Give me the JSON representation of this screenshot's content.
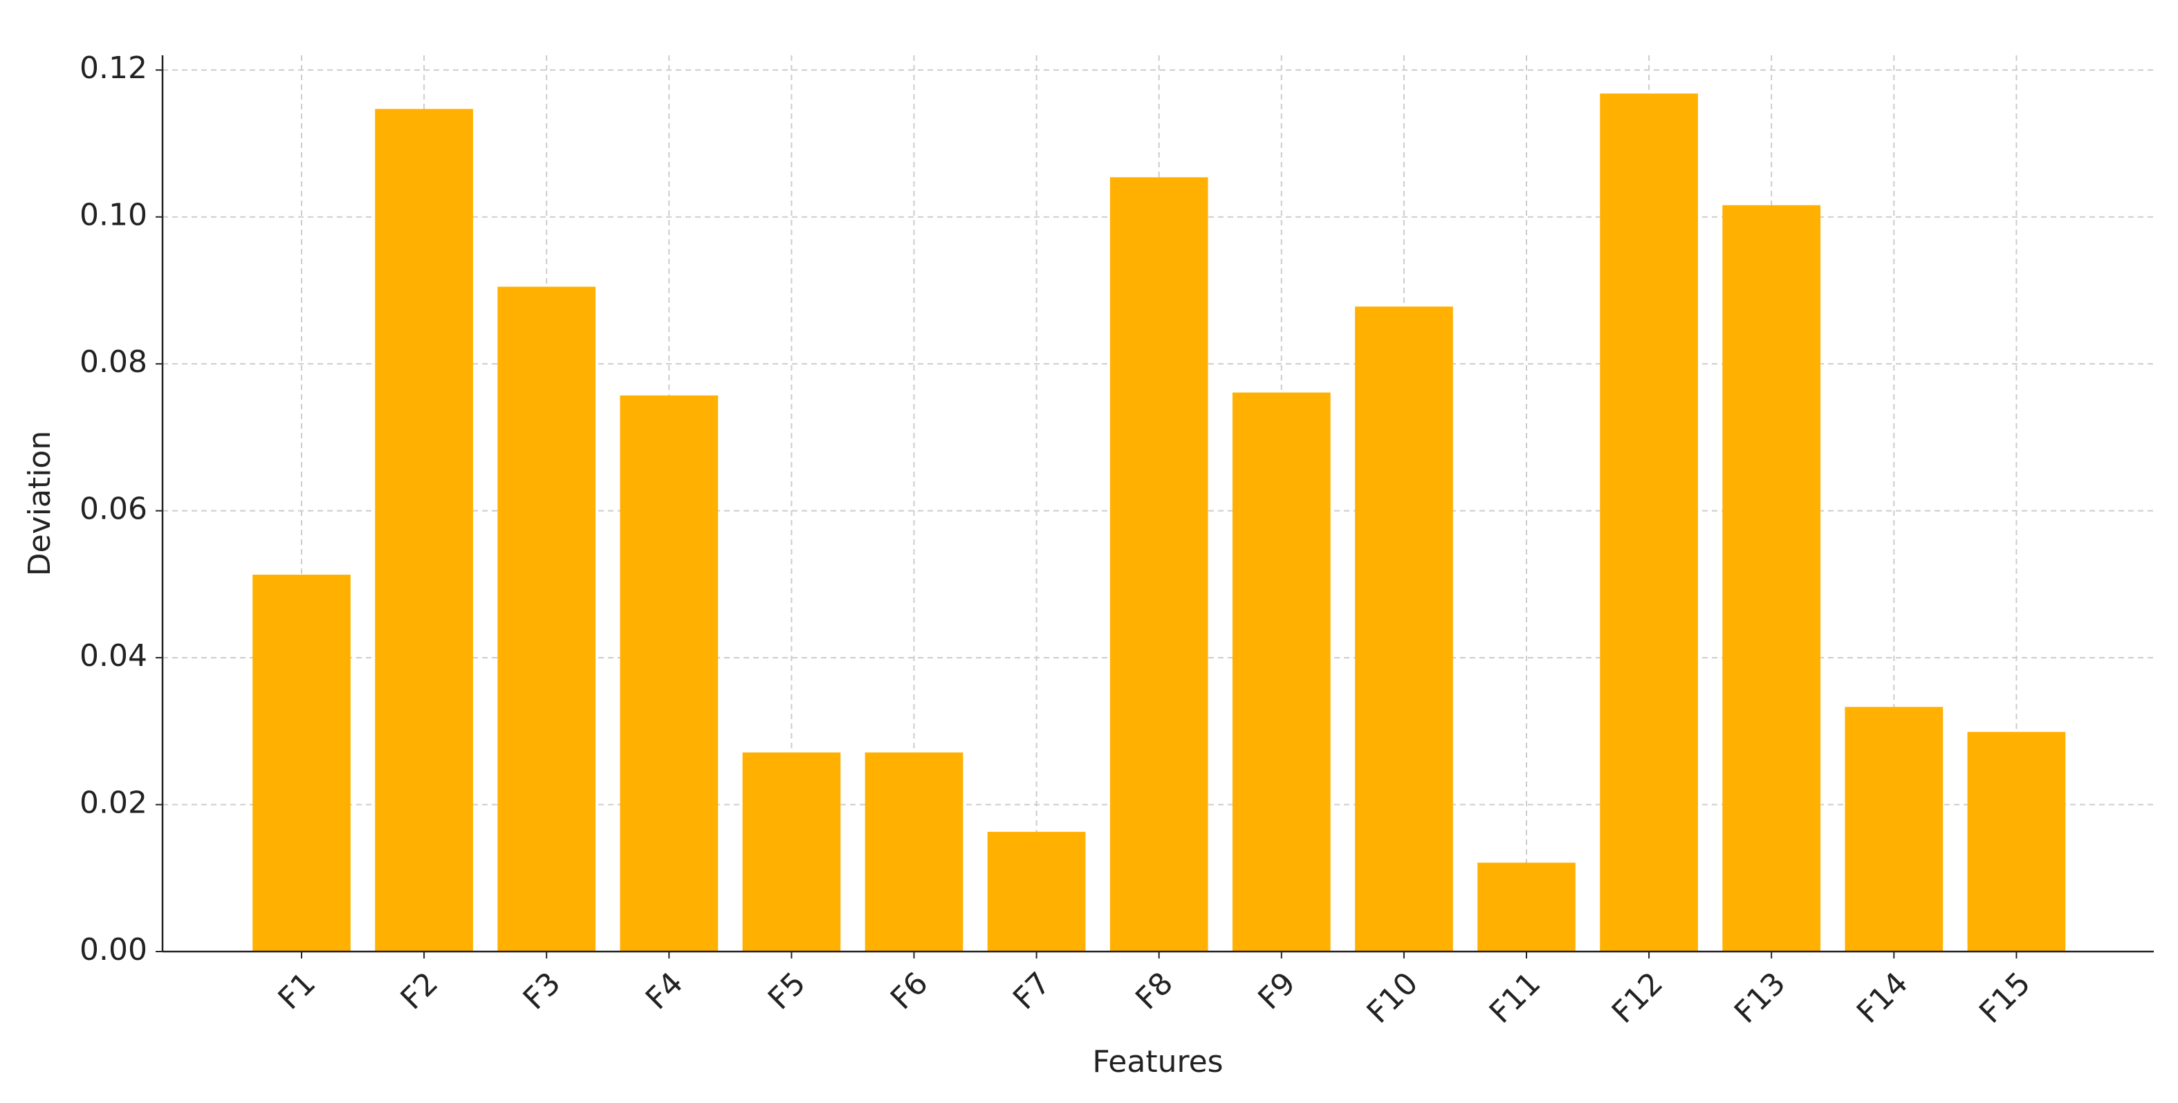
{
  "chart_data": {
    "type": "bar",
    "x_label": "Features",
    "y_label": "Deviation",
    "categories": [
      "F1",
      "F2",
      "F3",
      "F4",
      "F5",
      "F6",
      "F7",
      "F8",
      "F9",
      "F10",
      "F11",
      "F12",
      "F13",
      "F14",
      "F15"
    ],
    "values": [
      0.0513,
      0.1147,
      0.0905,
      0.0757,
      0.0271,
      0.0271,
      0.0163,
      0.1054,
      0.0761,
      0.0878,
      0.0121,
      0.1168,
      0.1016,
      0.0333,
      0.0299
    ],
    "color": "#ffb000",
    "ylim": [
      0,
      0.122
    ],
    "yticks": [
      {
        "value": 0,
        "label": "0.00"
      },
      {
        "value": 0.02,
        "label": "0.02"
      },
      {
        "value": 0.04,
        "label": "0.04"
      },
      {
        "value": 0.06,
        "label": "0.06"
      },
      {
        "value": 0.08,
        "label": "0.08"
      },
      {
        "value": 0.1,
        "label": "0.10"
      },
      {
        "value": 0.12,
        "label": "0.12"
      }
    ],
    "grid": true
  }
}
